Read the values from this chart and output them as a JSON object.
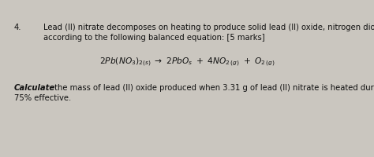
{
  "bg_color": "#cac6bf",
  "text_color": "#111111",
  "number": "4.",
  "line1": "Lead (II) nitrate decomposes on heating to produce solid lead (II) oxide, nitrogen dioxide gas, and oxygen",
  "line2": "according to the following balanced equation: [5 marks]",
  "calc_bold": "Calculate",
  "calc_rest": " the mass of lead (II) oxide produced when 3.31 g of lead (II) nitrate is heated during a reaction that is",
  "calc_line2": "75% effective.",
  "figsize": [
    4.74,
    2.01
  ],
  "dpi": 100,
  "fontsize": 7.2
}
